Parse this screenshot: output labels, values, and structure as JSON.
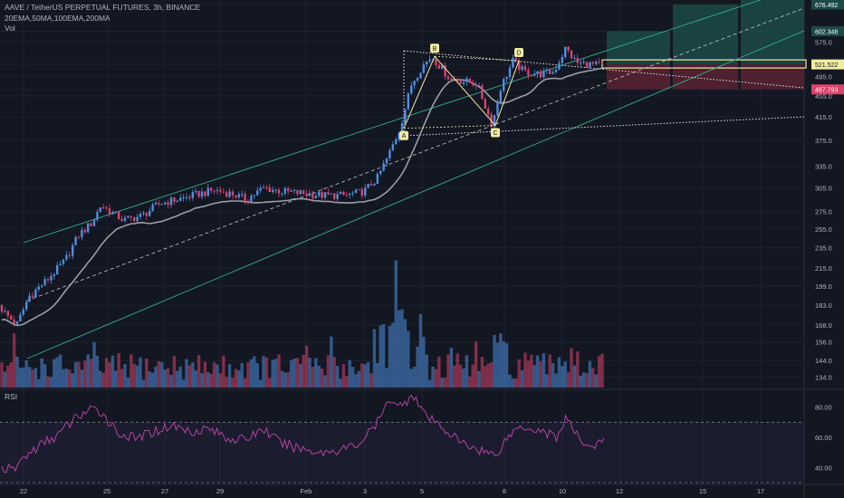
{
  "header": {
    "title": "AAVE / TetherUS PERPETUAL FUTURES, 3h, BINANCE",
    "indicators": "20EMA,50MA,100EMA,200MA",
    "volume_label": "Vol"
  },
  "rsi_label": "RSI",
  "colors": {
    "background": "#131722",
    "up": "#4f8fe0",
    "down": "#d9446b",
    "ma": "#9a9ea6",
    "channel": "#2fb08e",
    "rsi": "#b0449f",
    "pattern": "#f2eca2",
    "profit_zone": "#1c4a48",
    "loss_zone": "#5a2232"
  },
  "chart_data": [
    {
      "type": "candlestick",
      "symbol": "AAVE / TetherUS PERPETUAL FUTURES",
      "timeframe": "3h",
      "exchange": "BINANCE",
      "y_scale": "log",
      "ylim": [
        128,
        690
      ],
      "y_ticks": [
        676.492,
        602.348,
        575.0,
        521.522,
        495.0,
        467.793,
        455.0,
        415.0,
        375.0,
        335.0,
        305.0,
        275.0,
        255.0,
        235.0,
        215.0,
        199.0,
        183.0,
        168.0,
        156.0,
        144.0,
        134.0
      ],
      "price_badges": [
        {
          "label": "676.492",
          "color": "#1c4a48"
        },
        {
          "label": "602.348",
          "color": "#1c4a48"
        },
        {
          "label": "521.522",
          "color": "#f2eca2"
        },
        {
          "label": "467.793",
          "color": "#d9446b"
        }
      ],
      "x_ticks": [
        "22",
        "25",
        "27",
        "29",
        "Feb",
        "3",
        "5",
        "8",
        "10",
        "12",
        "15",
        "17"
      ],
      "anchors": [
        {
          "x": 0,
          "price": 185
        },
        {
          "x": 10,
          "price": 176
        },
        {
          "x": 22,
          "price": 168
        },
        {
          "x": 35,
          "price": 190
        },
        {
          "x": 55,
          "price": 204
        },
        {
          "x": 75,
          "price": 222
        },
        {
          "x": 90,
          "price": 248
        },
        {
          "x": 105,
          "price": 262
        },
        {
          "x": 115,
          "price": 283
        },
        {
          "x": 125,
          "price": 275
        },
        {
          "x": 140,
          "price": 265
        },
        {
          "x": 160,
          "price": 270
        },
        {
          "x": 180,
          "price": 285
        },
        {
          "x": 200,
          "price": 290
        },
        {
          "x": 220,
          "price": 296
        },
        {
          "x": 240,
          "price": 302
        },
        {
          "x": 260,
          "price": 297
        },
        {
          "x": 275,
          "price": 290
        },
        {
          "x": 295,
          "price": 305
        },
        {
          "x": 315,
          "price": 300
        },
        {
          "x": 335,
          "price": 298
        },
        {
          "x": 360,
          "price": 295
        },
        {
          "x": 385,
          "price": 295
        },
        {
          "x": 405,
          "price": 300
        },
        {
          "x": 420,
          "price": 318
        },
        {
          "x": 432,
          "price": 350
        },
        {
          "x": 445,
          "price": 395
        },
        {
          "x": 458,
          "price": 480
        },
        {
          "x": 470,
          "price": 518
        },
        {
          "x": 480,
          "price": 540
        },
        {
          "x": 492,
          "price": 510
        },
        {
          "x": 500,
          "price": 490
        },
        {
          "x": 515,
          "price": 485
        },
        {
          "x": 530,
          "price": 480
        },
        {
          "x": 547,
          "price": 400
        },
        {
          "x": 556,
          "price": 470
        },
        {
          "x": 570,
          "price": 530
        },
        {
          "x": 582,
          "price": 505
        },
        {
          "x": 600,
          "price": 500
        },
        {
          "x": 615,
          "price": 505
        },
        {
          "x": 628,
          "price": 560
        },
        {
          "x": 640,
          "price": 525
        },
        {
          "x": 665,
          "price": 519
        }
      ],
      "harmonic_points": [
        {
          "label": "A",
          "price": 395
        },
        {
          "label": "B",
          "price": 540
        },
        {
          "label": "C",
          "price": 400
        },
        {
          "label": "D",
          "price": 530
        }
      ],
      "long_position": {
        "entry": 521.522,
        "targets": [
          602.348,
          676.492
        ],
        "stop": 467.793
      }
    },
    {
      "type": "area",
      "name": "Vol",
      "note": "volume bars shaded by candle direction"
    },
    {
      "type": "line",
      "name": "RSI",
      "ylim": [
        30,
        90
      ],
      "y_ticks": [
        80.0,
        60.0,
        40.0
      ],
      "bands": [
        70,
        30
      ],
      "anchors": [
        {
          "x": 0,
          "v": 40
        },
        {
          "x": 15,
          "v": 38
        },
        {
          "x": 25,
          "v": 46
        },
        {
          "x": 45,
          "v": 55
        },
        {
          "x": 65,
          "v": 62
        },
        {
          "x": 85,
          "v": 74
        },
        {
          "x": 100,
          "v": 78
        },
        {
          "x": 112,
          "v": 77
        },
        {
          "x": 130,
          "v": 63
        },
        {
          "x": 150,
          "v": 59
        },
        {
          "x": 170,
          "v": 64
        },
        {
          "x": 190,
          "v": 68
        },
        {
          "x": 210,
          "v": 64
        },
        {
          "x": 230,
          "v": 66
        },
        {
          "x": 250,
          "v": 60
        },
        {
          "x": 270,
          "v": 58
        },
        {
          "x": 290,
          "v": 66
        },
        {
          "x": 310,
          "v": 56
        },
        {
          "x": 330,
          "v": 53
        },
        {
          "x": 355,
          "v": 50
        },
        {
          "x": 375,
          "v": 52
        },
        {
          "x": 395,
          "v": 55
        },
        {
          "x": 415,
          "v": 68
        },
        {
          "x": 432,
          "v": 86
        },
        {
          "x": 445,
          "v": 80
        },
        {
          "x": 455,
          "v": 90
        },
        {
          "x": 470,
          "v": 74
        },
        {
          "x": 490,
          "v": 66
        },
        {
          "x": 510,
          "v": 56
        },
        {
          "x": 530,
          "v": 52
        },
        {
          "x": 547,
          "v": 48
        },
        {
          "x": 560,
          "v": 60
        },
        {
          "x": 575,
          "v": 68
        },
        {
          "x": 600,
          "v": 64
        },
        {
          "x": 615,
          "v": 60
        },
        {
          "x": 625,
          "v": 73
        },
        {
          "x": 638,
          "v": 60
        },
        {
          "x": 652,
          "v": 54
        },
        {
          "x": 668,
          "v": 57
        }
      ]
    }
  ]
}
